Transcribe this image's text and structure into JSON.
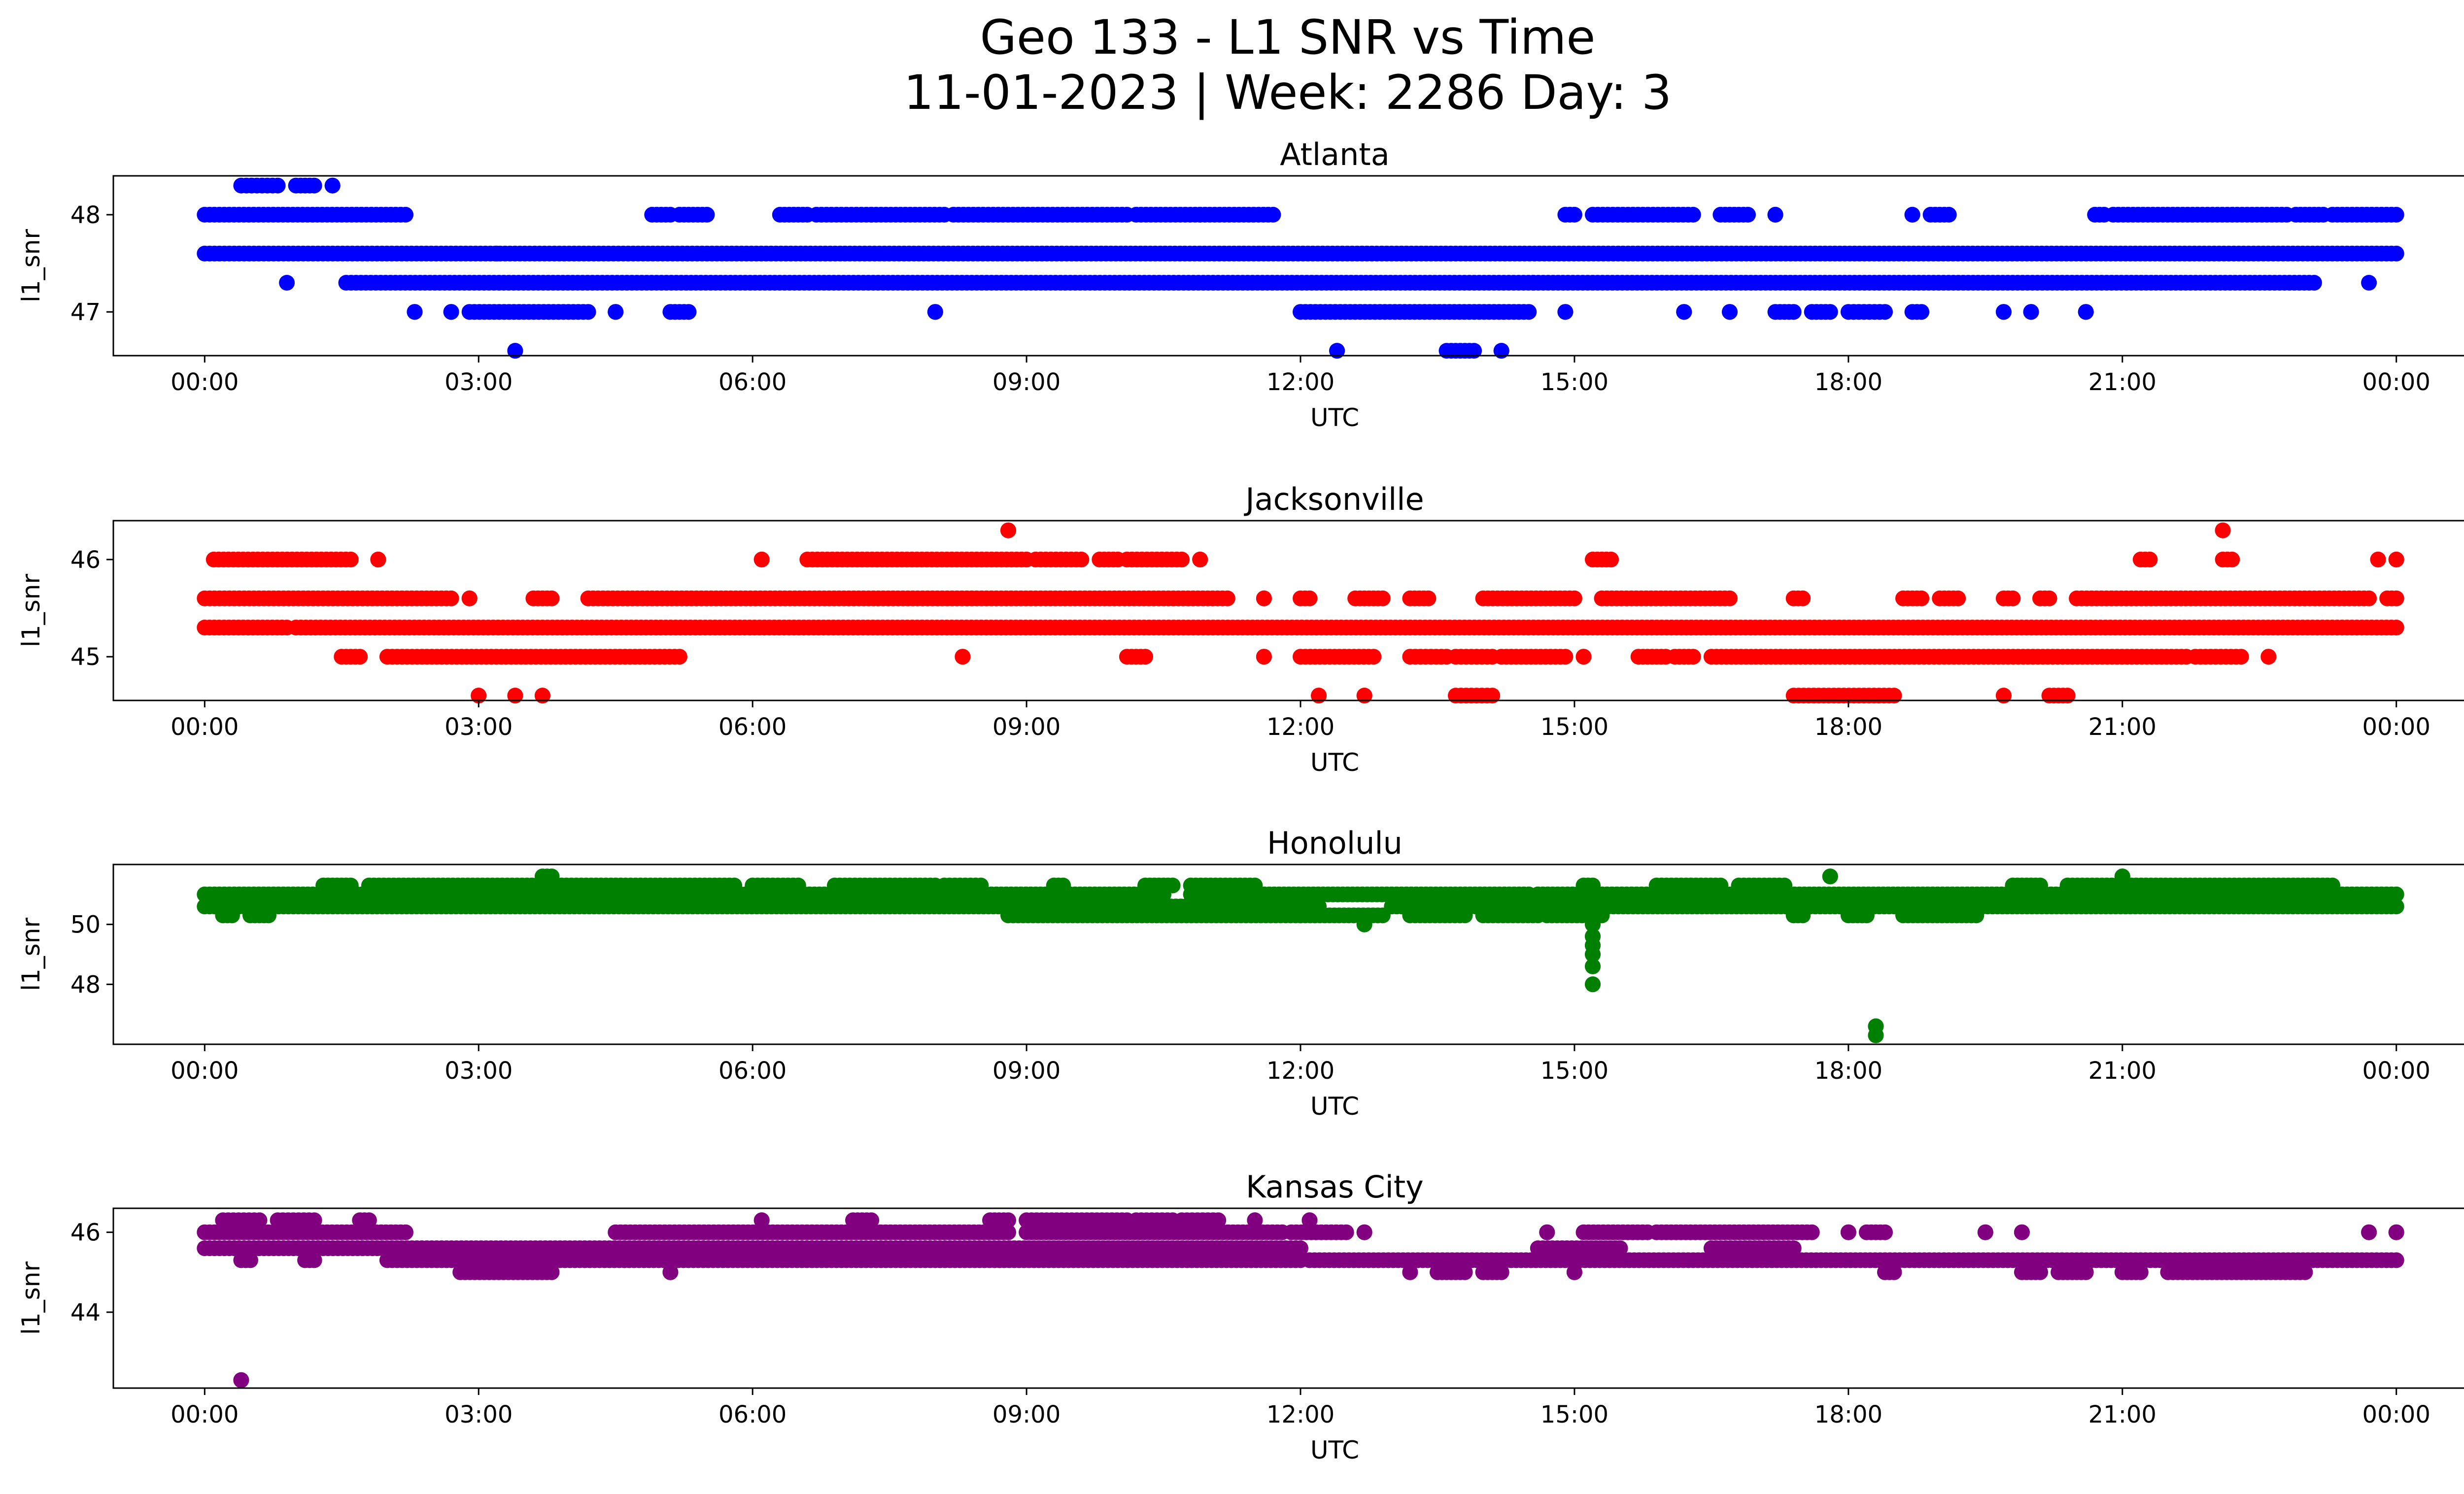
{
  "figure": {
    "title_line1": "Geo 133 - L1 SNR vs Time",
    "title_line2": "11-01-2023 | Week: 2286 Day: 3"
  },
  "chart_data": [
    {
      "type": "scatter",
      "title": "Atlanta",
      "xlabel": "UTC",
      "ylabel": "l1_snr",
      "color": "#0000ff",
      "xlim": [
        "23:00",
        "25:45"
      ],
      "ylim": [
        46.55,
        48.4
      ],
      "x_ticks": [
        "00:00",
        "03:00",
        "06:00",
        "09:00",
        "12:00",
        "15:00",
        "18:00",
        "21:00",
        "00:00"
      ],
      "x_tick_hours": [
        0,
        3,
        6,
        9,
        12,
        15,
        18,
        21,
        24
      ],
      "y_ticks": [
        47,
        48
      ],
      "grid": false,
      "series": [
        {
          "y": 47.6,
          "segments": [
            [
              0.0,
              24.0
            ]
          ]
        },
        {
          "y": 47.3,
          "segments": [
            [
              1.55,
              14.55
            ],
            [
              14.55,
              23.1
            ]
          ]
        },
        {
          "y": 48.0,
          "segments": [
            [
              0.0,
              2.2
            ],
            [
              4.9,
              5.1
            ],
            [
              5.2,
              5.5
            ],
            [
              6.3,
              6.6
            ],
            [
              6.7,
              7.3
            ],
            [
              7.3,
              8.1
            ],
            [
              8.2,
              10.1
            ],
            [
              10.2,
              10.9
            ],
            [
              10.9,
              11.7
            ],
            [
              14.9,
              15.0
            ],
            [
              15.2,
              16.3
            ],
            [
              16.6,
              16.9
            ],
            [
              17.2,
              17.2
            ],
            [
              18.7,
              18.7
            ],
            [
              18.9,
              19.1
            ],
            [
              20.7,
              20.8
            ],
            [
              20.9,
              22.8
            ],
            [
              22.9,
              23.2
            ],
            [
              23.3,
              24.0
            ]
          ]
        },
        {
          "y": 47.0,
          "segments": [
            [
              2.3,
              2.3
            ],
            [
              2.7,
              2.7
            ],
            [
              2.9,
              4.2
            ],
            [
              4.5,
              4.5
            ],
            [
              5.1,
              5.3
            ],
            [
              8.0,
              8.0
            ],
            [
              12.0,
              14.5
            ],
            [
              14.9,
              14.9
            ],
            [
              16.2,
              16.2
            ],
            [
              16.7,
              16.7
            ],
            [
              17.2,
              17.4
            ],
            [
              17.6,
              17.8
            ],
            [
              18.0,
              18.4
            ],
            [
              18.7,
              18.8
            ],
            [
              19.7,
              19.7
            ],
            [
              20.0,
              20.0
            ],
            [
              20.6,
              20.6
            ]
          ]
        },
        {
          "y": 48.3,
          "segments": [
            [
              0.4,
              0.8
            ],
            [
              1.0,
              1.2
            ],
            [
              1.4,
              1.4
            ]
          ]
        },
        {
          "y": 46.6,
          "segments": [
            [
              3.4,
              3.4
            ],
            [
              12.4,
              12.4
            ],
            [
              13.6,
              13.9
            ],
            [
              14.2,
              14.2
            ]
          ]
        }
      ],
      "points": [
        {
          "x": 0.9,
          "y": 47.3
        },
        {
          "x": 3.2,
          "y": 47.6
        },
        {
          "x": 23.7,
          "y": 47.3
        }
      ]
    },
    {
      "type": "scatter",
      "title": "Jacksonville",
      "xlabel": "UTC",
      "ylabel": "l1_snr",
      "color": "#ff0000",
      "xlim": [
        "23:00",
        "25:45"
      ],
      "ylim": [
        44.55,
        46.4
      ],
      "x_ticks": [
        "00:00",
        "03:00",
        "06:00",
        "09:00",
        "12:00",
        "15:00",
        "18:00",
        "21:00",
        "00:00"
      ],
      "x_tick_hours": [
        0,
        3,
        6,
        9,
        12,
        15,
        18,
        21,
        24
      ],
      "y_ticks": [
        45,
        46
      ],
      "grid": false,
      "series": [
        {
          "y": 45.3,
          "segments": [
            [
              0.0,
              0.9
            ],
            [
              1.0,
              24.0
            ]
          ]
        },
        {
          "y": 45.6,
          "segments": [
            [
              0.0,
              2.7
            ],
            [
              2.9,
              2.9
            ],
            [
              3.6,
              3.8
            ],
            [
              4.2,
              11.2
            ],
            [
              11.6,
              11.6
            ],
            [
              12.0,
              12.1
            ],
            [
              12.6,
              12.9
            ],
            [
              13.2,
              13.4
            ],
            [
              14.0,
              15.0
            ],
            [
              15.3,
              16.7
            ],
            [
              17.4,
              17.5
            ],
            [
              18.6,
              18.8
            ],
            [
              19.0,
              19.2
            ],
            [
              19.7,
              19.8
            ],
            [
              20.1,
              20.2
            ],
            [
              20.5,
              23.7
            ],
            [
              23.9,
              24.0
            ]
          ]
        },
        {
          "y": 46.0,
          "segments": [
            [
              0.1,
              1.6
            ],
            [
              1.9,
              1.9
            ],
            [
              6.1,
              6.1
            ],
            [
              6.6,
              9.0
            ],
            [
              9.1,
              9.6
            ],
            [
              9.8,
              10.0
            ],
            [
              10.1,
              10.7
            ],
            [
              10.9,
              10.9
            ],
            [
              15.2,
              15.4
            ],
            [
              21.2,
              21.3
            ],
            [
              22.1,
              22.2
            ],
            [
              23.8,
              23.8
            ],
            [
              24.0,
              24.0
            ]
          ]
        },
        {
          "y": 45.0,
          "segments": [
            [
              1.5,
              1.7
            ],
            [
              2.0,
              5.2
            ],
            [
              8.3,
              8.3
            ],
            [
              10.1,
              10.3
            ],
            [
              11.6,
              11.6
            ],
            [
              12.0,
              12.8
            ],
            [
              13.2,
              13.6
            ],
            [
              13.7,
              14.1
            ],
            [
              14.2,
              14.9
            ],
            [
              15.1,
              15.1
            ],
            [
              15.7,
              16.0
            ],
            [
              16.1,
              16.3
            ],
            [
              16.5,
              21.7
            ],
            [
              21.8,
              22.3
            ],
            [
              22.6,
              22.6
            ]
          ]
        },
        {
          "y": 44.6,
          "segments": [
            [
              3.0,
              3.0
            ],
            [
              3.4,
              3.4
            ],
            [
              3.7,
              3.7
            ],
            [
              12.2,
              12.2
            ],
            [
              12.7,
              12.7
            ],
            [
              13.7,
              14.1
            ],
            [
              17.4,
              18.5
            ],
            [
              19.7,
              19.7
            ],
            [
              20.2,
              20.4
            ]
          ]
        },
        {
          "y": 46.3,
          "segments": [
            [
              8.8,
              8.8
            ],
            [
              22.1,
              22.1
            ]
          ]
        }
      ],
      "points": []
    },
    {
      "type": "scatter",
      "title": "Honolulu",
      "xlabel": "UTC",
      "ylabel": "l1_snr",
      "color": "#008000",
      "xlim": [
        "23:00",
        "25:45"
      ],
      "ylim": [
        46.0,
        52.0
      ],
      "x_ticks": [
        "00:00",
        "03:00",
        "06:00",
        "09:00",
        "12:00",
        "15:00",
        "18:00",
        "21:00",
        "00:00"
      ],
      "x_tick_hours": [
        0,
        3,
        6,
        9,
        12,
        15,
        18,
        21,
        24
      ],
      "y_ticks": [
        48,
        50
      ],
      "grid": false,
      "series": [
        {
          "y": 50.6,
          "segments": [
            [
              0.0,
              12.2
            ],
            [
              13.0,
              24.0
            ]
          ]
        },
        {
          "y": 51.0,
          "segments": [
            [
              0.0,
              10.5
            ],
            [
              10.8,
              14.5
            ],
            [
              14.6,
              24.0
            ]
          ]
        },
        {
          "y": 51.3,
          "segments": [
            [
              1.3,
              1.6
            ],
            [
              1.8,
              5.8
            ],
            [
              6.0,
              6.5
            ],
            [
              6.9,
              8.0
            ],
            [
              8.1,
              8.5
            ],
            [
              9.3,
              9.4
            ],
            [
              10.3,
              10.6
            ],
            [
              10.8,
              11.5
            ],
            [
              15.1,
              15.2
            ],
            [
              15.9,
              16.6
            ],
            [
              16.8,
              17.3
            ],
            [
              19.8,
              20.1
            ],
            [
              20.4,
              23.3
            ]
          ]
        },
        {
          "y": 50.3,
          "segments": [
            [
              0.2,
              0.3
            ],
            [
              0.5,
              0.7
            ],
            [
              8.8,
              12.0
            ],
            [
              12.0,
              12.9
            ],
            [
              13.2,
              13.8
            ],
            [
              14.0,
              14.6
            ],
            [
              14.7,
              15.3
            ],
            [
              17.4,
              17.5
            ],
            [
              18.0,
              18.2
            ],
            [
              18.6,
              19.4
            ]
          ]
        },
        {
          "y": 51.6,
          "segments": [
            [
              3.7,
              3.8
            ],
            [
              17.8,
              17.8
            ],
            [
              21.0,
              21.0
            ]
          ]
        },
        {
          "y": 50.0,
          "segments": [
            [
              12.7,
              12.7
            ],
            [
              15.2,
              15.2
            ]
          ]
        },
        {
          "y": 49.6,
          "segments": [
            [
              15.2,
              15.2
            ]
          ]
        },
        {
          "y": 49.3,
          "segments": [
            [
              15.2,
              15.2
            ]
          ]
        },
        {
          "y": 49.0,
          "segments": [
            [
              15.2,
              15.2
            ]
          ]
        },
        {
          "y": 48.6,
          "segments": [
            [
              15.2,
              15.2
            ]
          ]
        },
        {
          "y": 48.0,
          "segments": [
            [
              15.2,
              15.2
            ]
          ]
        },
        {
          "y": 46.6,
          "segments": [
            [
              18.3,
              18.3
            ]
          ]
        },
        {
          "y": 46.3,
          "segments": [
            [
              18.3,
              18.3
            ]
          ]
        }
      ],
      "points": []
    },
    {
      "type": "scatter",
      "title": "Kansas City",
      "xlabel": "UTC",
      "ylabel": "l1_snr",
      "color": "#800080",
      "xlim": [
        "23:00",
        "25:45"
      ],
      "ylim": [
        42.1,
        46.6
      ],
      "x_ticks": [
        "00:00",
        "03:00",
        "06:00",
        "09:00",
        "12:00",
        "15:00",
        "18:00",
        "21:00",
        "00:00"
      ],
      "x_tick_hours": [
        0,
        3,
        6,
        9,
        12,
        15,
        18,
        21,
        24
      ],
      "y_ticks": [
        44,
        46
      ],
      "grid": false,
      "series": [
        {
          "y": 45.6,
          "segments": [
            [
              0.0,
              12.0
            ],
            [
              14.6,
              15.5
            ],
            [
              16.5,
              17.4
            ]
          ]
        },
        {
          "y": 45.3,
          "segments": [
            [
              0.4,
              0.5
            ],
            [
              1.1,
              1.2
            ],
            [
              2.0,
              12.0
            ],
            [
              12.1,
              24.0
            ]
          ]
        },
        {
          "y": 46.0,
          "segments": [
            [
              0.0,
              2.2
            ],
            [
              4.5,
              8.8
            ],
            [
              9.0,
              11.8
            ],
            [
              11.9,
              12.5
            ],
            [
              12.7,
              12.7
            ],
            [
              14.7,
              14.7
            ],
            [
              15.1,
              15.8
            ],
            [
              15.9,
              17.6
            ],
            [
              18.0,
              18.0
            ],
            [
              18.2,
              18.4
            ],
            [
              19.5,
              19.5
            ],
            [
              19.9,
              19.9
            ],
            [
              23.7,
              23.7
            ],
            [
              24.0,
              24.0
            ]
          ]
        },
        {
          "y": 46.3,
          "segments": [
            [
              0.2,
              0.6
            ],
            [
              0.8,
              1.2
            ],
            [
              1.7,
              1.8
            ],
            [
              6.1,
              6.1
            ],
            [
              7.1,
              7.3
            ],
            [
              8.6,
              8.8
            ],
            [
              9.0,
              10.1
            ],
            [
              10.2,
              10.6
            ],
            [
              10.7,
              11.1
            ],
            [
              11.5,
              11.5
            ],
            [
              12.1,
              12.1
            ]
          ]
        },
        {
          "y": 45.0,
          "segments": [
            [
              2.8,
              3.8
            ],
            [
              5.1,
              5.1
            ],
            [
              13.2,
              13.2
            ],
            [
              13.5,
              13.8
            ],
            [
              14.0,
              14.2
            ],
            [
              15.0,
              15.0
            ],
            [
              18.4,
              18.5
            ],
            [
              19.9,
              20.1
            ],
            [
              20.3,
              20.6
            ],
            [
              21.0,
              21.2
            ],
            [
              21.5,
              23.0
            ]
          ]
        },
        {
          "y": 42.3,
          "segments": [
            [
              0.4,
              0.4
            ]
          ]
        }
      ],
      "points": []
    }
  ]
}
